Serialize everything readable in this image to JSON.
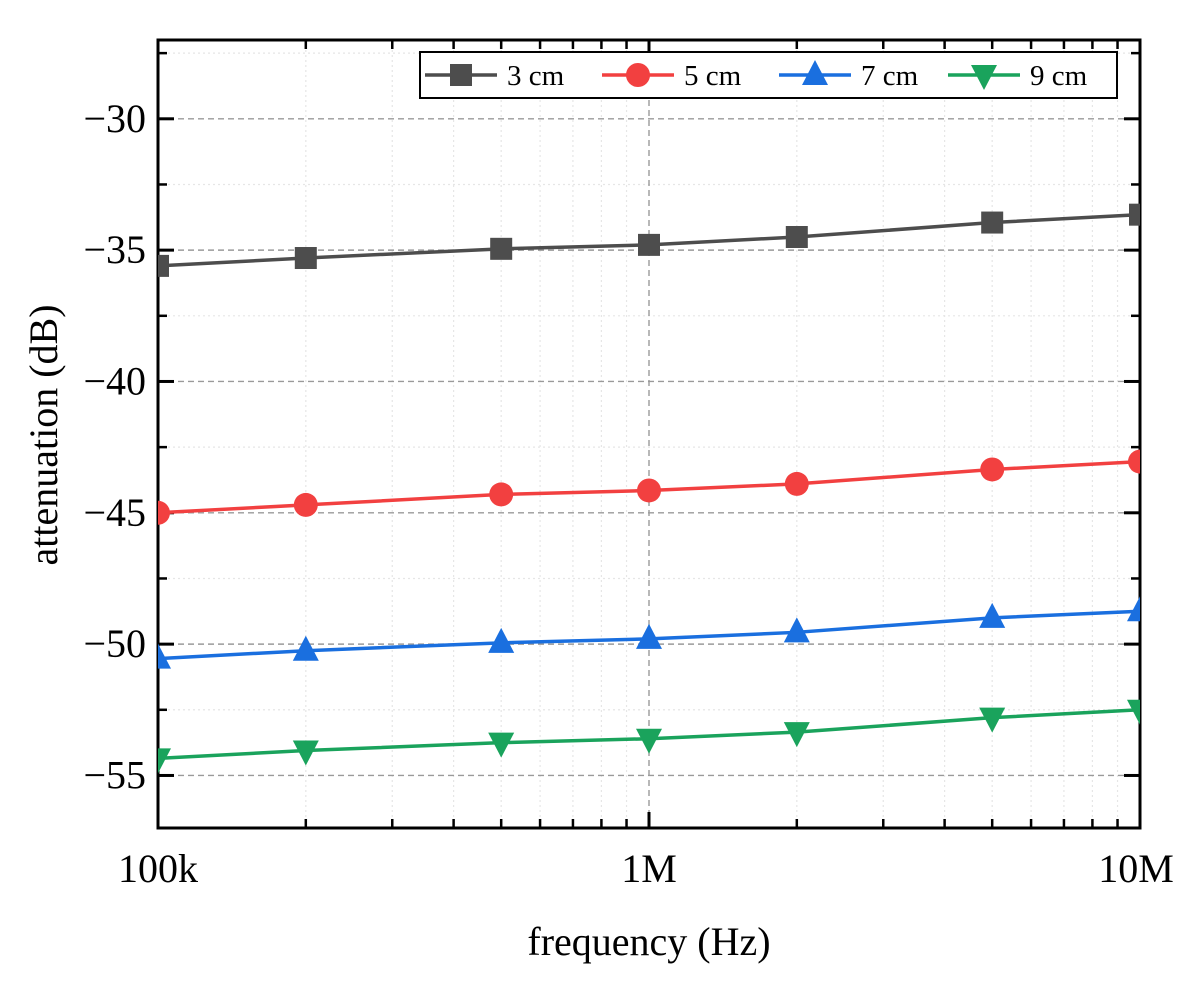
{
  "chart_data": {
    "type": "line",
    "title": "",
    "xlabel": "frequency (Hz)",
    "ylabel": "attenuation (dB)",
    "xscale": "log",
    "xlim": [
      100000,
      10000000
    ],
    "ylim": [
      -57,
      -27
    ],
    "x": [
      100000,
      200000,
      500000,
      1000000,
      2000000,
      5000000,
      10000000
    ],
    "x_ticks": [
      {
        "value": 100000,
        "label": "100k"
      },
      {
        "value": 1000000,
        "label": "1M"
      },
      {
        "value": 10000000,
        "label": "10M"
      }
    ],
    "y_ticks": [
      {
        "value": -30,
        "label": "−30"
      },
      {
        "value": -35,
        "label": "−35"
      },
      {
        "value": -40,
        "label": "−40"
      },
      {
        "value": -45,
        "label": "−45"
      },
      {
        "value": -50,
        "label": "−50"
      },
      {
        "value": -55,
        "label": "−55"
      }
    ],
    "grid": true,
    "legend_position": "top-right",
    "series": [
      {
        "name": "3 cm",
        "color": "#4d4d4d",
        "marker": "square",
        "values": [
          -35.6,
          -35.3,
          -34.95,
          -34.8,
          -34.5,
          -33.95,
          -33.65
        ]
      },
      {
        "name": "5 cm",
        "color": "#f24040",
        "marker": "circle",
        "values": [
          -45.0,
          -44.7,
          -44.3,
          -44.15,
          -43.9,
          -43.35,
          -43.05
        ]
      },
      {
        "name": "7 cm",
        "color": "#1a6fdf",
        "marker": "triangle-up",
        "values": [
          -50.55,
          -50.25,
          -49.95,
          -49.8,
          -49.55,
          -49.0,
          -48.75
        ]
      },
      {
        "name": "9 cm",
        "color": "#1aa35c",
        "marker": "triangle-down",
        "values": [
          -54.35,
          -54.05,
          -53.75,
          -53.6,
          -53.35,
          -52.8,
          -52.5
        ]
      }
    ]
  }
}
